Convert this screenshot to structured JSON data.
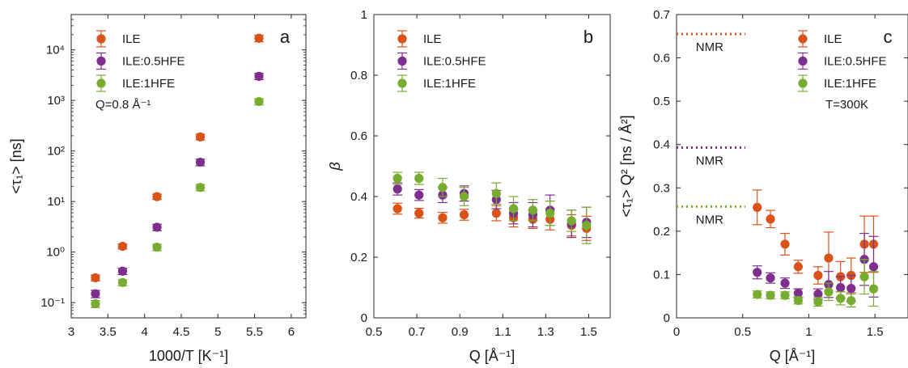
{
  "colors": {
    "ILE": "#d95319",
    "ILE:0.5HFE": "#7e2f8e",
    "ILE:1HFE": "#77ac30",
    "axis": "#262626"
  },
  "chart_data": [
    {
      "id": "a",
      "type": "scatter",
      "panel_label": "a",
      "xlabel": "1000/T [K⁻¹]",
      "ylabel": "<τ₁> [ns]",
      "xlim": [
        3,
        6.2
      ],
      "ylim": [
        0.05,
        50000
      ],
      "yscale": "log",
      "grid": false,
      "legend_position": "top-left",
      "xticks": [
        3,
        3.5,
        4,
        4.5,
        5,
        5.5,
        6
      ],
      "xtick_labels": [
        "3",
        "3.5",
        "4",
        "4.5",
        "5",
        "5.5",
        "6"
      ],
      "yticks": [
        0.1,
        1,
        10,
        100,
        1000,
        10000
      ],
      "ytick_labels": [
        "10⁻¹",
        "10⁰",
        "10¹",
        "10²",
        "10³",
        "10⁴"
      ],
      "annotations": [
        "Q=0.8 Å⁻¹"
      ],
      "series": [
        {
          "name": "ILE",
          "x": [
            3.33,
            3.7,
            4.17,
            4.76,
            5.56
          ],
          "y": [
            0.31,
            1.3,
            12.5,
            190,
            17000
          ],
          "err": [
            0.04,
            0.15,
            1.5,
            25,
            2500
          ]
        },
        {
          "name": "ILE:0.5HFE",
          "x": [
            3.33,
            3.7,
            4.17,
            4.76,
            5.56
          ],
          "y": [
            0.15,
            0.42,
            3.1,
            60,
            3000
          ],
          "err": [
            0.025,
            0.06,
            0.45,
            9,
            420
          ]
        },
        {
          "name": "ILE:1HFE",
          "x": [
            3.33,
            3.7,
            4.17,
            4.76,
            5.56
          ],
          "y": [
            0.095,
            0.25,
            1.25,
            19,
            950
          ],
          "err": [
            0.015,
            0.035,
            0.18,
            2.7,
            130
          ]
        }
      ]
    },
    {
      "id": "b",
      "type": "scatter",
      "panel_label": "b",
      "xlabel": "Q [Å⁻¹]",
      "ylabel": "β",
      "xlim": [
        0.5,
        1.6
      ],
      "ylim": [
        0,
        1
      ],
      "yscale": "linear",
      "grid": false,
      "legend_position": "top-left",
      "xticks": [
        0.5,
        0.7,
        0.9,
        1.1,
        1.3,
        1.5
      ],
      "xtick_labels": [
        "0.5",
        "0.7",
        "0.9",
        "1.1",
        "1.3",
        "1.5"
      ],
      "yticks": [
        0,
        0.2,
        0.4,
        0.6,
        0.8,
        1
      ],
      "ytick_labels": [
        "0",
        "0.2",
        "0.4",
        "0.6",
        "0.8",
        "1"
      ],
      "series": [
        {
          "name": "ILE",
          "x": [
            0.61,
            0.71,
            0.82,
            0.92,
            1.07,
            1.15,
            1.24,
            1.32,
            1.42,
            1.49
          ],
          "y": [
            0.36,
            0.345,
            0.33,
            0.34,
            0.345,
            0.33,
            0.325,
            0.325,
            0.305,
            0.295
          ],
          "err": [
            0.018,
            0.016,
            0.018,
            0.018,
            0.025,
            0.03,
            0.03,
            0.035,
            0.035,
            0.04
          ]
        },
        {
          "name": "ILE:0.5HFE",
          "x": [
            0.61,
            0.71,
            0.82,
            0.92,
            1.07,
            1.15,
            1.24,
            1.32,
            1.42,
            1.49
          ],
          "y": [
            0.425,
            0.405,
            0.405,
            0.41,
            0.39,
            0.345,
            0.34,
            0.355,
            0.31,
            0.315
          ],
          "err": [
            0.02,
            0.018,
            0.025,
            0.025,
            0.03,
            0.035,
            0.04,
            0.05,
            0.045,
            0.05
          ]
        },
        {
          "name": "ILE:1HFE",
          "x": [
            0.61,
            0.71,
            0.82,
            0.92,
            1.07,
            1.15,
            1.24,
            1.32,
            1.42,
            1.49
          ],
          "y": [
            0.46,
            0.46,
            0.43,
            0.4,
            0.41,
            0.36,
            0.355,
            0.345,
            0.32,
            0.305
          ],
          "err": [
            0.02,
            0.02,
            0.03,
            0.03,
            0.035,
            0.04,
            0.035,
            0.04,
            0.035,
            0.06
          ]
        }
      ]
    },
    {
      "id": "c",
      "type": "scatter",
      "panel_label": "c",
      "xlabel": "Q [Å⁻¹]",
      "ylabel": "<τ₁> Q² [ns / Å²]",
      "xlim": [
        0,
        1.75
      ],
      "ylim": [
        0,
        0.7
      ],
      "yscale": "linear",
      "grid": false,
      "legend_position": "top-right",
      "xticks": [
        0,
        0.5,
        1,
        1.5
      ],
      "xtick_labels": [
        "0",
        "0.5",
        "1",
        "1.5"
      ],
      "yticks": [
        0,
        0.1,
        0.2,
        0.3,
        0.4,
        0.5,
        0.6,
        0.7
      ],
      "ytick_labels": [
        "0",
        "0.1",
        "0.2",
        "0.3",
        "0.4",
        "0.5",
        "0.6",
        "0.7"
      ],
      "annotations": [
        "T=300K"
      ],
      "reference_lines": [
        {
          "series": "ILE",
          "label": "NMR",
          "y": 0.655,
          "x_range": [
            0,
            0.52
          ]
        },
        {
          "series": "ILE:0.5HFE",
          "label": "NMR",
          "y": 0.393,
          "x_range": [
            0,
            0.52
          ]
        },
        {
          "series": "ILE:1HFE",
          "label": "NMR",
          "y": 0.257,
          "x_range": [
            0,
            0.52
          ]
        }
      ],
      "series": [
        {
          "name": "ILE",
          "x": [
            0.61,
            0.71,
            0.82,
            0.92,
            1.07,
            1.15,
            1.24,
            1.32,
            1.42,
            1.49
          ],
          "y": [
            0.255,
            0.228,
            0.17,
            0.118,
            0.098,
            0.138,
            0.095,
            0.098,
            0.17,
            0.17
          ],
          "err": [
            0.04,
            0.02,
            0.025,
            0.015,
            0.02,
            0.06,
            0.035,
            0.04,
            0.065,
            0.065
          ]
        },
        {
          "name": "ILE:0.5HFE",
          "x": [
            0.61,
            0.71,
            0.82,
            0.92,
            1.07,
            1.15,
            1.24,
            1.32,
            1.42,
            1.49
          ],
          "y": [
            0.105,
            0.092,
            0.08,
            0.057,
            0.055,
            0.077,
            0.07,
            0.068,
            0.135,
            0.118
          ],
          "err": [
            0.015,
            0.012,
            0.012,
            0.01,
            0.012,
            0.03,
            0.025,
            0.03,
            0.06,
            0.07
          ]
        },
        {
          "name": "ILE:1HFE",
          "x": [
            0.61,
            0.71,
            0.82,
            0.92,
            1.07,
            1.15,
            1.24,
            1.32,
            1.42,
            1.49
          ],
          "y": [
            0.054,
            0.052,
            0.052,
            0.04,
            0.037,
            0.06,
            0.045,
            0.04,
            0.095,
            0.067
          ],
          "err": [
            0.008,
            0.008,
            0.008,
            0.008,
            0.01,
            0.02,
            0.015,
            0.015,
            0.04,
            0.04
          ]
        }
      ]
    }
  ]
}
